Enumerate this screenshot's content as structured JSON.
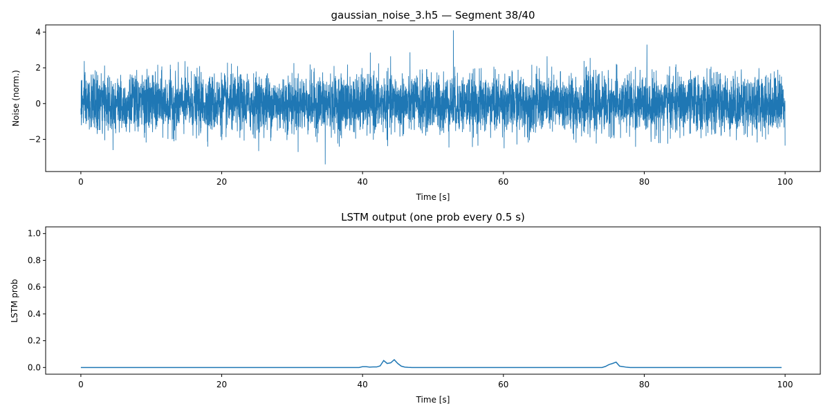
{
  "chart_data": [
    {
      "type": "line",
      "title": "gaussian_noise_3.h5 — Segment 38/40",
      "xlabel": "Time [s]",
      "ylabel": "Noise (norm.)",
      "xlim": [
        -5,
        105
      ],
      "ylim": [
        -3.8,
        4.4
      ],
      "xticks": [
        0,
        20,
        40,
        60,
        80,
        100
      ],
      "yticks": [
        -2,
        0,
        2,
        4
      ],
      "xtick_labels": [
        "0",
        "20",
        "40",
        "60",
        "80",
        "100"
      ],
      "ytick_labels": [
        "−2",
        "0",
        "2",
        "4"
      ],
      "grid": false,
      "series": [
        {
          "name": "noise",
          "color": "#1f77b4",
          "description": "dense gaussian noise, mean 0, std ~0.8, approx range -3.4 to 4.1",
          "x_range": [
            0,
            100
          ],
          "mean": 0,
          "std": 0.8,
          "peak": {
            "x": 52.9,
            "y": 4.1
          },
          "trough": {
            "x": 34.7,
            "y": -3.4
          }
        }
      ]
    },
    {
      "type": "line",
      "title": "LSTM output (one prob every 0.5 s)",
      "xlabel": "Time [s]",
      "ylabel": "LSTM prob",
      "xlim": [
        -5,
        105
      ],
      "ylim": [
        -0.05,
        1.05
      ],
      "xticks": [
        0,
        20,
        40,
        60,
        80,
        100
      ],
      "yticks": [
        0.0,
        0.2,
        0.4,
        0.6,
        0.8,
        1.0
      ],
      "xtick_labels": [
        "0",
        "20",
        "40",
        "60",
        "80",
        "100"
      ],
      "ytick_labels": [
        "0.0",
        "0.2",
        "0.4",
        "0.6",
        "0.8",
        "1.0"
      ],
      "grid": false,
      "series": [
        {
          "name": "LSTM prob",
          "color": "#1f77b4",
          "x": [
            0,
            39.5,
            40.0,
            40.5,
            41.0,
            41.5,
            42.0,
            42.5,
            43.0,
            43.5,
            44.0,
            44.5,
            45.0,
            45.5,
            46.0,
            46.5,
            47.0,
            74.0,
            74.5,
            75.0,
            75.5,
            76.0,
            76.5,
            77.0,
            77.5,
            78.0,
            99.5
          ],
          "y": [
            0.0,
            0.0,
            0.006,
            0.006,
            0.003,
            0.004,
            0.004,
            0.012,
            0.052,
            0.03,
            0.035,
            0.058,
            0.03,
            0.01,
            0.003,
            0.001,
            0.0,
            0.0,
            0.008,
            0.022,
            0.03,
            0.04,
            0.01,
            0.006,
            0.002,
            0.0,
            0.0
          ]
        }
      ]
    }
  ]
}
